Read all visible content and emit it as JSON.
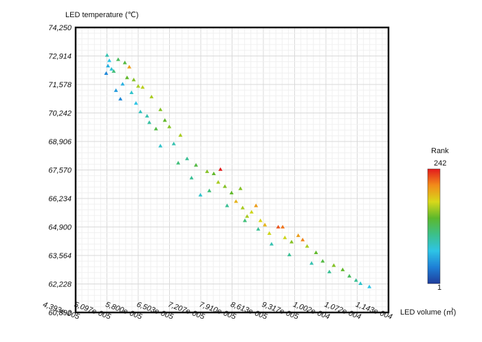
{
  "chart_data": {
    "type": "scatter",
    "title": "",
    "ylabel": "LED temperature (℃)",
    "xlabel": "LED volume (㎥)",
    "xlim": [
      4.393e-05,
      0.0001143
    ],
    "ylim": [
      60.892,
      74.25
    ],
    "x_ticks": [
      "4,393e-005",
      "5,097e-005",
      "5,800e-005",
      "6,503e-005",
      "7,207e-005",
      "7,910e-005",
      "8,613e-005",
      "9,317e-005",
      "1,002e-004",
      "1,072e-004",
      "1,143e-004"
    ],
    "y_ticks": [
      "60,892",
      "62,228",
      "63,564",
      "64,900",
      "66,234",
      "67,570",
      "68,906",
      "70,242",
      "71,578",
      "72,914",
      "74,250"
    ],
    "grid": true,
    "legend": {
      "title": "Rank",
      "max_label": "242",
      "min_label": "1",
      "placement": "right",
      "colormap": [
        "#1f3d9c",
        "#1e7fd6",
        "#2ec4e6",
        "#3cc08a",
        "#5cb82c",
        "#d8d81a",
        "#f28c1a",
        "#e31a1c"
      ]
    },
    "series": [
      {
        "points": [
          [
            5.1e-05,
            72.95,
            90
          ],
          [
            5.15e-05,
            72.7,
            70
          ],
          [
            5.12e-05,
            72.45,
            60
          ],
          [
            5.2e-05,
            72.3,
            75
          ],
          [
            5.08e-05,
            72.1,
            40
          ],
          [
            5.25e-05,
            72.2,
            110
          ],
          [
            5.35e-05,
            72.75,
            120
          ],
          [
            5.5e-05,
            72.6,
            130
          ],
          [
            5.6e-05,
            72.4,
            200
          ],
          [
            5.55e-05,
            71.9,
            140
          ],
          [
            5.7e-05,
            71.8,
            150
          ],
          [
            5.8e-05,
            71.5,
            160
          ],
          [
            5.9e-05,
            71.45,
            165
          ],
          [
            6.1e-05,
            71.0,
            160
          ],
          [
            6.3e-05,
            70.4,
            150
          ],
          [
            6.4e-05,
            69.9,
            140
          ],
          [
            6.5e-05,
            69.6,
            150
          ],
          [
            6.75e-05,
            69.2,
            160
          ],
          [
            6.2e-05,
            69.5,
            130
          ],
          [
            6e-05,
            70.1,
            90
          ],
          [
            5.75e-05,
            70.7,
            70
          ],
          [
            5.65e-05,
            71.2,
            80
          ],
          [
            5.45e-05,
            71.6,
            60
          ],
          [
            5.4e-05,
            70.9,
            40
          ],
          [
            5.3e-05,
            71.3,
            50
          ],
          [
            5.85e-05,
            70.3,
            85
          ],
          [
            6.05e-05,
            69.8,
            95
          ],
          [
            6.6e-05,
            68.8,
            90
          ],
          [
            6.9e-05,
            68.1,
            100
          ],
          [
            7.1e-05,
            67.8,
            130
          ],
          [
            7.35e-05,
            67.5,
            150
          ],
          [
            7.5e-05,
            67.4,
            140
          ],
          [
            7.6e-05,
            67.0,
            160
          ],
          [
            7.65e-05,
            67.6,
            242
          ],
          [
            7.75e-05,
            66.8,
            150
          ],
          [
            7.9e-05,
            66.5,
            140
          ],
          [
            8e-05,
            66.1,
            190
          ],
          [
            8.1e-05,
            66.7,
            150
          ],
          [
            8.15e-05,
            65.8,
            160
          ],
          [
            8.25e-05,
            65.4,
            160
          ],
          [
            8.35e-05,
            65.6,
            170
          ],
          [
            8.45e-05,
            65.9,
            200
          ],
          [
            8.55e-05,
            65.2,
            175
          ],
          [
            8.65e-05,
            65.0,
            190
          ],
          [
            8.75e-05,
            64.6,
            170
          ],
          [
            8.95e-05,
            64.9,
            225
          ],
          [
            9.05e-05,
            64.9,
            215
          ],
          [
            9.1e-05,
            64.4,
            170
          ],
          [
            9.25e-05,
            64.2,
            150
          ],
          [
            9.4e-05,
            64.5,
            200
          ],
          [
            9.5e-05,
            64.3,
            210
          ],
          [
            9.6e-05,
            64.0,
            160
          ],
          [
            9.8e-05,
            63.7,
            140
          ],
          [
            9.95e-05,
            63.3,
            130
          ],
          [
            0.000102,
            63.1,
            150
          ],
          [
            0.000104,
            62.9,
            140
          ],
          [
            0.0001055,
            62.6,
            120
          ],
          [
            0.000107,
            62.4,
            100
          ],
          [
            0.000108,
            62.25,
            80
          ],
          [
            0.00011,
            62.1,
            70
          ],
          [
            8.5e-05,
            64.8,
            100
          ],
          [
            8.2e-05,
            65.2,
            110
          ],
          [
            7.8e-05,
            65.9,
            100
          ],
          [
            7.4e-05,
            66.6,
            110
          ],
          [
            7e-05,
            67.2,
            100
          ],
          [
            6.7e-05,
            67.9,
            110
          ],
          [
            6.3e-05,
            68.7,
            80
          ],
          [
            7.2e-05,
            66.4,
            80
          ],
          [
            8.8e-05,
            64.1,
            90
          ],
          [
            9.2e-05,
            63.6,
            100
          ],
          [
            9.7e-05,
            63.2,
            90
          ],
          [
            0.000101,
            62.8,
            100
          ]
        ]
      }
    ]
  }
}
